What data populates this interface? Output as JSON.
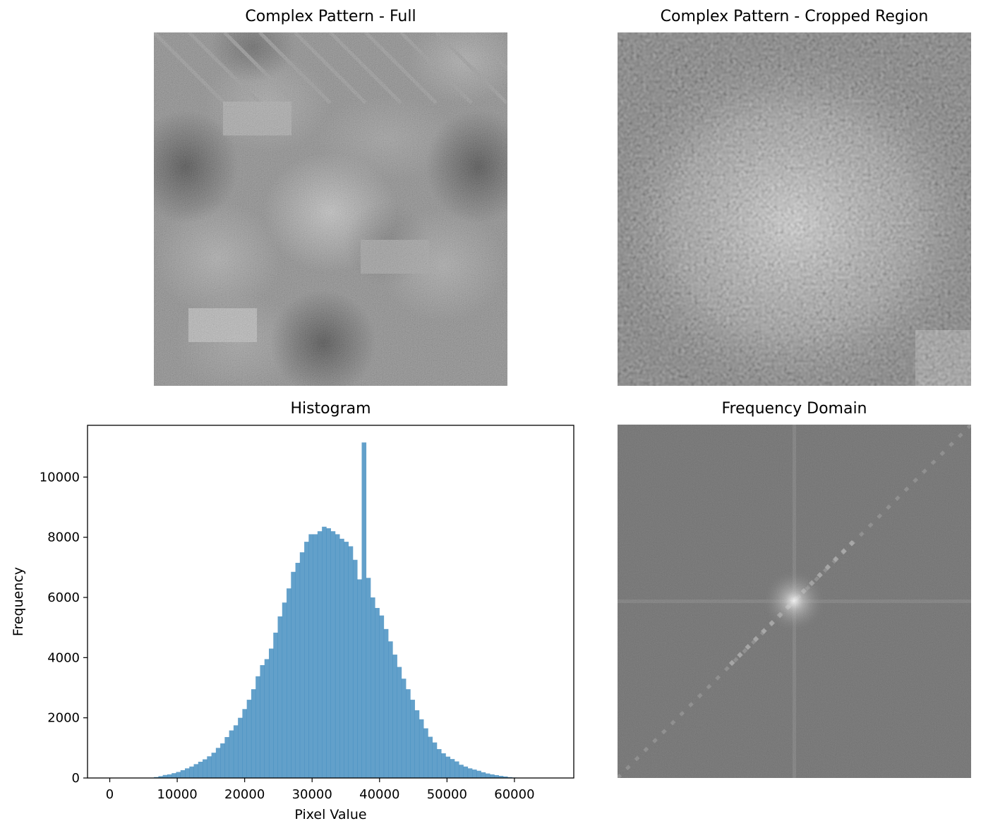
{
  "figure": {
    "panels": [
      {
        "id": "full",
        "title": "Complex Pattern - Full"
      },
      {
        "id": "cropped",
        "title": "Complex Pattern - Cropped Region"
      },
      {
        "id": "histogram",
        "title": "Histogram"
      },
      {
        "id": "frequency",
        "title": "Frequency Domain"
      }
    ]
  },
  "chart_data": [
    {
      "type": "bar",
      "title": "Histogram",
      "xlabel": "Pixel Value",
      "ylabel": "Frequency",
      "xlim": [
        -3300,
        68800
      ],
      "ylim": [
        0,
        11720
      ],
      "xticks": [
        0,
        10000,
        20000,
        30000,
        40000,
        50000,
        60000
      ],
      "xtick_labels": [
        "0",
        "10000",
        "20000",
        "30000",
        "40000",
        "50000",
        "60000"
      ],
      "yticks": [
        0,
        2000,
        4000,
        6000,
        8000,
        10000
      ],
      "ytick_labels": [
        "0",
        "2000",
        "4000",
        "6000",
        "8000",
        "10000"
      ],
      "bin_start": 0,
      "bin_width": 655.35,
      "color": "#1f77b4",
      "alpha": 0.7,
      "values": [
        0,
        0,
        0,
        0,
        0,
        0,
        0,
        0,
        0,
        10,
        30,
        60,
        100,
        120,
        160,
        200,
        260,
        320,
        380,
        460,
        540,
        620,
        720,
        840,
        1000,
        1150,
        1360,
        1580,
        1750,
        2000,
        2290,
        2600,
        2950,
        3380,
        3750,
        3950,
        4300,
        4830,
        5370,
        5830,
        6300,
        6850,
        7150,
        7500,
        7850,
        8100,
        8100,
        8200,
        8350,
        8300,
        8200,
        8100,
        7950,
        7850,
        7700,
        7250,
        6600,
        11150,
        6650,
        6000,
        5650,
        5400,
        4950,
        4540,
        4100,
        3690,
        3300,
        2950,
        2600,
        2250,
        1950,
        1650,
        1370,
        1180,
        960,
        820,
        710,
        630,
        550,
        440,
        380,
        320,
        280,
        240,
        190,
        150,
        120,
        95,
        70,
        50,
        28,
        15,
        7,
        3,
        0,
        0,
        0,
        0,
        0,
        0
      ]
    },
    {
      "type": "heatmap",
      "title": "Complex Pattern - Full",
      "colormap": "gray"
    },
    {
      "type": "heatmap",
      "title": "Complex Pattern - Cropped Region",
      "colormap": "gray"
    },
    {
      "type": "heatmap",
      "title": "Frequency Domain",
      "colormap": "gray"
    }
  ],
  "colors": {
    "bar": "#1f77b4",
    "axes": "#000000",
    "freq_background": "#646464"
  }
}
